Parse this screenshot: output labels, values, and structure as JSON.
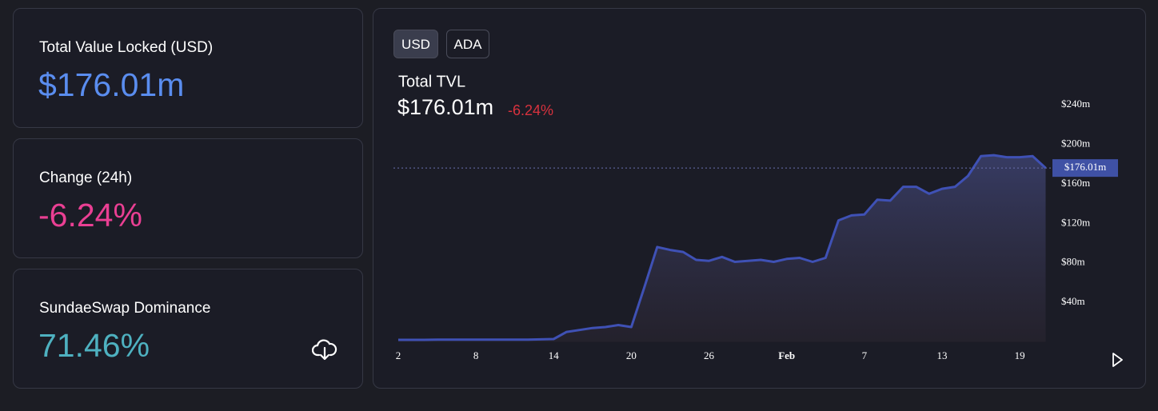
{
  "cards": [
    {
      "label": "Total Value Locked (USD)",
      "value": "$176.01m"
    },
    {
      "label": "Change (24h)",
      "value": "-6.24%"
    },
    {
      "label": "SundaeSwap Dominance",
      "value": "71.46%"
    }
  ],
  "currency_toggle": [
    "USD",
    "ADA"
  ],
  "chart_data": {
    "type": "area",
    "title": "Total TVL",
    "current": "$176.01m",
    "change": "-6.24%",
    "color": "#3f51b5",
    "categories": [
      "2",
      null,
      null,
      null,
      null,
      null,
      "8",
      null,
      null,
      null,
      null,
      null,
      "14",
      null,
      null,
      null,
      null,
      null,
      "20",
      null,
      null,
      null,
      null,
      null,
      "26",
      null,
      null,
      null,
      null,
      null,
      "Feb",
      null,
      null,
      null,
      null,
      null,
      "7",
      null,
      null,
      null,
      null,
      null,
      "13",
      null,
      null,
      null,
      null,
      null,
      "19",
      null,
      null
    ],
    "values": [
      2,
      2,
      2,
      2.2,
      2.3,
      2.3,
      2.3,
      2.3,
      2.3,
      2.3,
      2.3,
      2.5,
      2.8,
      10,
      12,
      14,
      15,
      17,
      15,
      55,
      96,
      93,
      91,
      83,
      82,
      86,
      81,
      82,
      83,
      81,
      84,
      85,
      81,
      85,
      123,
      128,
      129,
      144,
      143,
      157,
      157,
      150,
      155,
      157,
      168,
      188,
      189,
      187,
      187,
      188,
      176.01
    ],
    "ylim": [
      0,
      250
    ],
    "yticks": [
      {
        "value": 40,
        "label": "$40m"
      },
      {
        "value": 80,
        "label": "$80m"
      },
      {
        "value": 120,
        "label": "$120m"
      },
      {
        "value": 160,
        "label": "$160m"
      },
      {
        "value": 200,
        "label": "$200m"
      },
      {
        "value": 240,
        "label": "$240m"
      }
    ]
  }
}
